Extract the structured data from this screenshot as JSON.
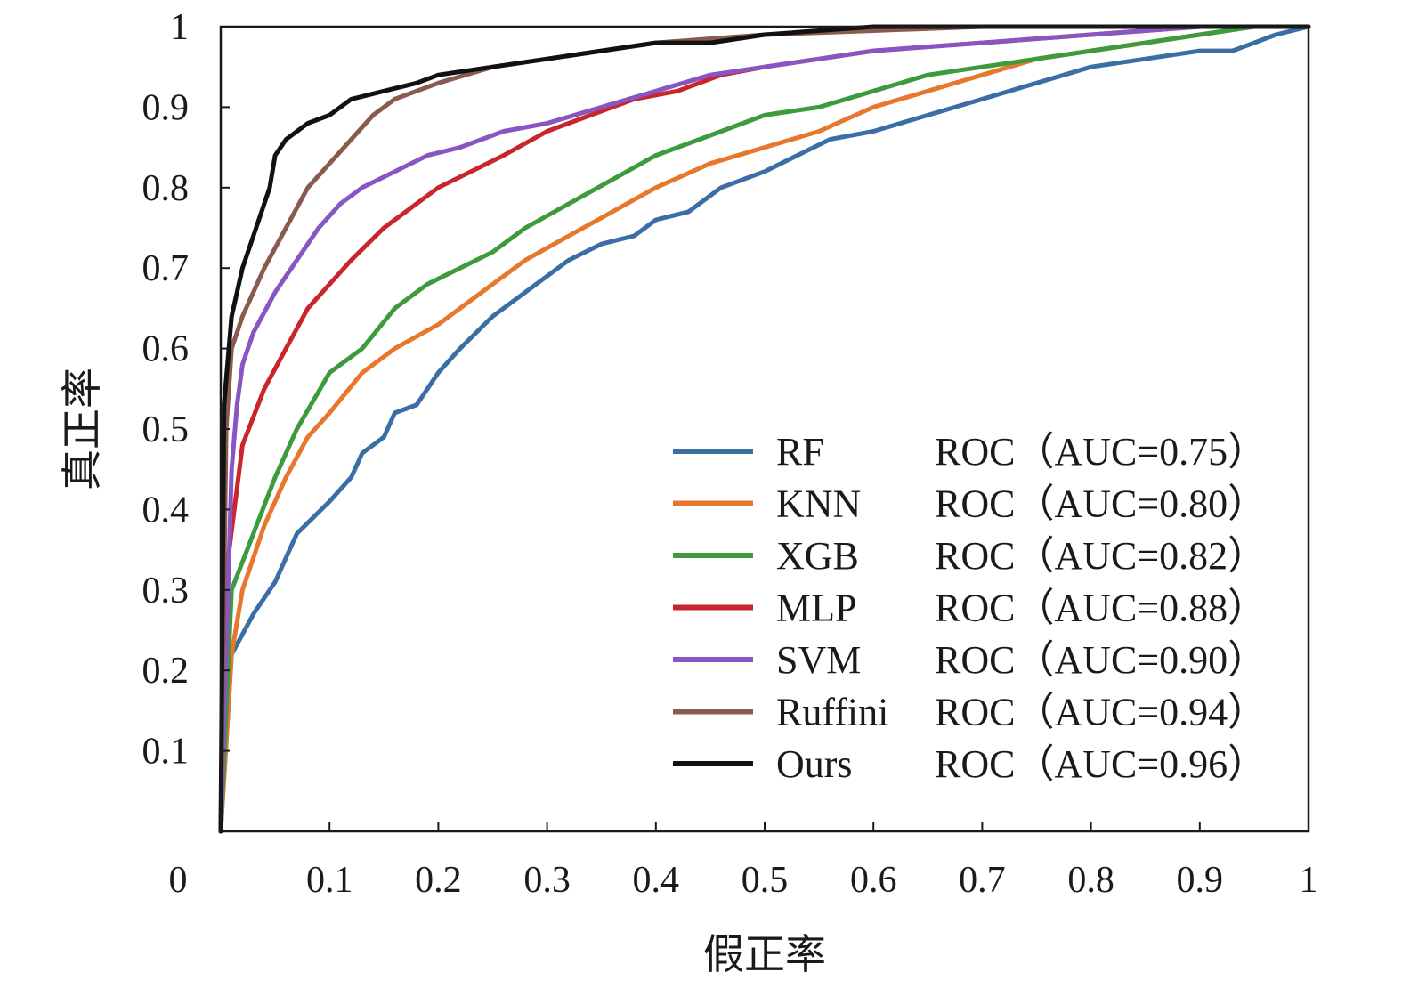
{
  "chart_data": {
    "type": "line",
    "title": "",
    "xlabel": "假正率",
    "ylabel": "真正率",
    "xlim": [
      0,
      1
    ],
    "ylim": [
      0,
      1
    ],
    "grid": false,
    "legend_position": "bottom-right",
    "x_ticks": [
      "0",
      "0.1",
      "0.2",
      "0.3",
      "0.4",
      "0.5",
      "0.6",
      "0.7",
      "0.8",
      "0.9",
      "1"
    ],
    "y_ticks": [
      "0.1",
      "0.2",
      "0.3",
      "0.4",
      "0.5",
      "0.6",
      "0.7",
      "0.8",
      "0.9",
      "1"
    ],
    "series": [
      {
        "name": "RF",
        "label": "ROC（AUC=0.75）",
        "color": "#3a6ea5",
        "x": [
          0,
          0.01,
          0.03,
          0.05,
          0.07,
          0.1,
          0.12,
          0.13,
          0.15,
          0.16,
          0.18,
          0.2,
          0.22,
          0.25,
          0.28,
          0.3,
          0.32,
          0.35,
          0.38,
          0.4,
          0.43,
          0.46,
          0.5,
          0.53,
          0.56,
          0.6,
          0.65,
          0.7,
          0.75,
          0.8,
          0.85,
          0.9,
          0.93,
          0.95,
          0.97,
          1
        ],
        "y": [
          0,
          0.22,
          0.27,
          0.31,
          0.37,
          0.41,
          0.44,
          0.47,
          0.49,
          0.52,
          0.53,
          0.57,
          0.6,
          0.64,
          0.67,
          0.69,
          0.71,
          0.73,
          0.74,
          0.76,
          0.77,
          0.8,
          0.82,
          0.84,
          0.86,
          0.87,
          0.89,
          0.91,
          0.93,
          0.95,
          0.96,
          0.97,
          0.97,
          0.98,
          0.99,
          1
        ]
      },
      {
        "name": "KNN",
        "label": "ROC（AUC=0.80）",
        "color": "#e8772e",
        "x": [
          0,
          0.01,
          0.02,
          0.04,
          0.06,
          0.08,
          0.1,
          0.13,
          0.16,
          0.2,
          0.22,
          0.25,
          0.28,
          0.32,
          0.36,
          0.4,
          0.45,
          0.5,
          0.55,
          0.6,
          0.65,
          0.7,
          0.75,
          0.8,
          0.85,
          0.9,
          0.95,
          1
        ],
        "y": [
          0,
          0.22,
          0.3,
          0.38,
          0.44,
          0.49,
          0.52,
          0.57,
          0.6,
          0.63,
          0.65,
          0.68,
          0.71,
          0.74,
          0.77,
          0.8,
          0.83,
          0.85,
          0.87,
          0.9,
          0.92,
          0.94,
          0.96,
          0.97,
          0.98,
          0.99,
          1,
          1
        ]
      },
      {
        "name": "XGB",
        "label": "ROC（AUC=0.82）",
        "color": "#3d9a3d",
        "x": [
          0,
          0.01,
          0.03,
          0.05,
          0.07,
          0.1,
          0.13,
          0.16,
          0.19,
          0.22,
          0.25,
          0.28,
          0.32,
          0.36,
          0.4,
          0.44,
          0.5,
          0.55,
          0.6,
          0.65,
          0.7,
          0.75,
          0.8,
          0.85,
          0.9,
          0.95,
          1
        ],
        "y": [
          0,
          0.3,
          0.37,
          0.44,
          0.5,
          0.57,
          0.6,
          0.65,
          0.68,
          0.7,
          0.72,
          0.75,
          0.78,
          0.81,
          0.84,
          0.86,
          0.89,
          0.9,
          0.92,
          0.94,
          0.95,
          0.96,
          0.97,
          0.98,
          0.99,
          1,
          1
        ]
      },
      {
        "name": "MLP",
        "label": "ROC（AUC=0.88）",
        "color": "#c9262c",
        "x": [
          0,
          0.005,
          0.02,
          0.04,
          0.06,
          0.08,
          0.1,
          0.12,
          0.15,
          0.18,
          0.2,
          0.23,
          0.26,
          0.3,
          0.34,
          0.38,
          0.42,
          0.46,
          0.5,
          0.55,
          0.6,
          0.7,
          0.8,
          0.9,
          1
        ],
        "y": [
          0,
          0.32,
          0.48,
          0.55,
          0.6,
          0.65,
          0.68,
          0.71,
          0.75,
          0.78,
          0.8,
          0.82,
          0.84,
          0.87,
          0.89,
          0.91,
          0.92,
          0.94,
          0.95,
          0.96,
          0.97,
          0.98,
          0.99,
          1,
          1
        ]
      },
      {
        "name": "SVM",
        "label": "ROC（AUC=0.90）",
        "color": "#8855c2",
        "x": [
          0,
          0.01,
          0.015,
          0.02,
          0.03,
          0.05,
          0.07,
          0.09,
          0.11,
          0.13,
          0.16,
          0.19,
          0.22,
          0.26,
          0.3,
          0.35,
          0.4,
          0.45,
          0.5,
          0.55,
          0.6,
          0.7,
          0.8,
          0.9,
          1
        ],
        "y": [
          0,
          0.45,
          0.53,
          0.58,
          0.62,
          0.67,
          0.71,
          0.75,
          0.78,
          0.8,
          0.82,
          0.84,
          0.85,
          0.87,
          0.88,
          0.9,
          0.92,
          0.94,
          0.95,
          0.96,
          0.97,
          0.98,
          0.99,
          1,
          1
        ]
      },
      {
        "name": "Ruffini",
        "label": "ROC（AUC=0.94）",
        "color": "#8b5a4e",
        "x": [
          0,
          0.005,
          0.01,
          0.02,
          0.03,
          0.04,
          0.06,
          0.08,
          0.1,
          0.12,
          0.14,
          0.16,
          0.18,
          0.2,
          0.25,
          0.3,
          0.35,
          0.4,
          0.5,
          0.6,
          0.7,
          0.8,
          0.9,
          1
        ],
        "y": [
          0,
          0.5,
          0.6,
          0.64,
          0.67,
          0.7,
          0.75,
          0.8,
          0.83,
          0.86,
          0.89,
          0.91,
          0.92,
          0.93,
          0.95,
          0.96,
          0.97,
          0.98,
          0.99,
          0.995,
          1,
          1,
          1,
          1
        ]
      },
      {
        "name": "Ours",
        "label": "ROC（AUC=0.96）",
        "color": "#111111",
        "x": [
          0,
          0.003,
          0.01,
          0.02,
          0.03,
          0.045,
          0.05,
          0.06,
          0.08,
          0.1,
          0.12,
          0.15,
          0.18,
          0.2,
          0.25,
          0.3,
          0.35,
          0.4,
          0.45,
          0.5,
          0.6,
          0.7,
          0.8,
          0.9,
          1
        ],
        "y": [
          0,
          0.53,
          0.64,
          0.7,
          0.74,
          0.8,
          0.84,
          0.86,
          0.88,
          0.89,
          0.91,
          0.92,
          0.93,
          0.94,
          0.95,
          0.96,
          0.97,
          0.98,
          0.98,
          0.99,
          1,
          1,
          1,
          1,
          1
        ]
      }
    ]
  }
}
